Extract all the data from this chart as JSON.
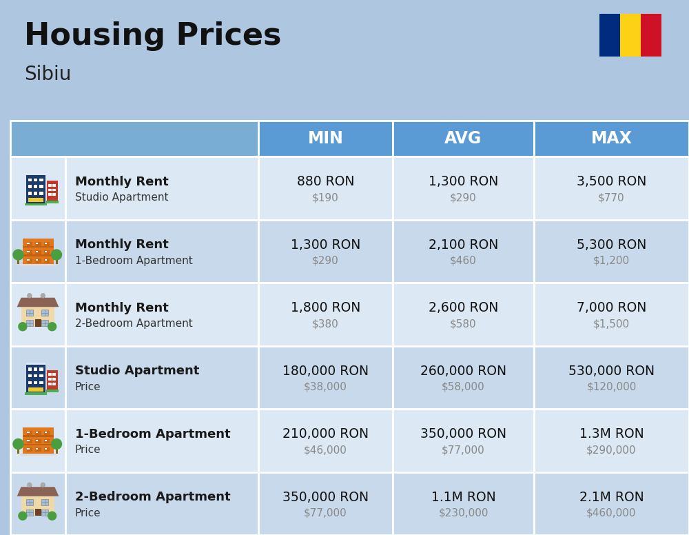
{
  "title": "Housing Prices",
  "subtitle": "Sibiu",
  "bg_color": "#aec6e0",
  "header_bg": "#5b9bd5",
  "header_text_color": "#ffffff",
  "row_bg_odd": "#dce8f3",
  "row_bg_even": "#c8d9ec",
  "col_headers": [
    "MIN",
    "AVG",
    "MAX"
  ],
  "flag_colors": [
    "#002B7F",
    "#FCD116",
    "#CE1126"
  ],
  "rows": [
    {
      "bold_label": "Monthly Rent",
      "sub_label": "Studio Apartment",
      "min_ron": "880 RON",
      "min_usd": "$190",
      "avg_ron": "1,300 RON",
      "avg_usd": "$290",
      "max_ron": "3,500 RON",
      "max_usd": "$770",
      "icon_type": "blue_tower"
    },
    {
      "bold_label": "Monthly Rent",
      "sub_label": "1-Bedroom Apartment",
      "min_ron": "1,300 RON",
      "min_usd": "$290",
      "avg_ron": "2,100 RON",
      "avg_usd": "$460",
      "max_ron": "5,300 RON",
      "max_usd": "$1,200",
      "icon_type": "orange_block"
    },
    {
      "bold_label": "Monthly Rent",
      "sub_label": "2-Bedroom Apartment",
      "min_ron": "1,800 RON",
      "min_usd": "$380",
      "avg_ron": "2,600 RON",
      "avg_usd": "$580",
      "max_ron": "7,000 RON",
      "max_usd": "$1,500",
      "icon_type": "beige_house"
    },
    {
      "bold_label": "Studio Apartment",
      "sub_label": "Price",
      "min_ron": "180,000 RON",
      "min_usd": "$38,000",
      "avg_ron": "260,000 RON",
      "avg_usd": "$58,000",
      "max_ron": "530,000 RON",
      "max_usd": "$120,000",
      "icon_type": "blue_tower"
    },
    {
      "bold_label": "1-Bedroom Apartment",
      "sub_label": "Price",
      "min_ron": "210,000 RON",
      "min_usd": "$46,000",
      "avg_ron": "350,000 RON",
      "avg_usd": "$77,000",
      "max_ron": "1.3M RON",
      "max_usd": "$290,000",
      "icon_type": "orange_block"
    },
    {
      "bold_label": "2-Bedroom Apartment",
      "sub_label": "Price",
      "min_ron": "350,000 RON",
      "min_usd": "$77,000",
      "avg_ron": "1.1M RON",
      "avg_usd": "$230,000",
      "max_ron": "2.1M RON",
      "max_usd": "$460,000",
      "icon_type": "beige_house"
    }
  ]
}
